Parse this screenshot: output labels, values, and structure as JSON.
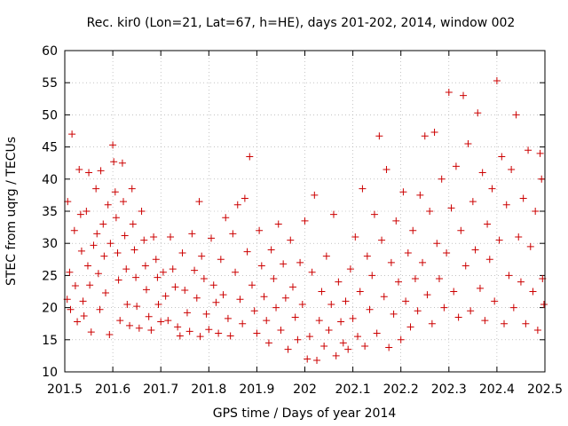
{
  "chart_data": {
    "type": "scatter",
    "title": "Rec. kir0 (Lon=21, Lat=67, h=HE), days 201-202, 2014, window 002",
    "xlabel": "GPS time / Days of year 2014",
    "ylabel": "STEC from uqrg / TECUs",
    "xlim": [
      201.5,
      202.5
    ],
    "ylim": [
      10,
      60
    ],
    "xticks": [
      "201.5",
      "201.6",
      "201.7",
      "201.8",
      "201.9",
      "202",
      "202.1",
      "202.2",
      "202.3",
      "202.4",
      "202.5"
    ],
    "yticks": [
      "10",
      "15",
      "20",
      "25",
      "30",
      "35",
      "40",
      "45",
      "50",
      "55",
      "60"
    ],
    "grid": true,
    "marker": "+",
    "marker_color": "#cc0000",
    "series": [
      {
        "points": [
          [
            201.505,
            21.3
          ],
          [
            201.506,
            36.5
          ],
          [
            201.51,
            25.5
          ],
          [
            201.512,
            19.7
          ],
          [
            201.515,
            47.0
          ],
          [
            201.52,
            32.0
          ],
          [
            201.522,
            23.4
          ],
          [
            201.526,
            17.8
          ],
          [
            201.53,
            41.5
          ],
          [
            201.533,
            34.5
          ],
          [
            201.535,
            28.8
          ],
          [
            201.538,
            21.0
          ],
          [
            201.54,
            18.7
          ],
          [
            201.545,
            35.0
          ],
          [
            201.548,
            26.5
          ],
          [
            201.55,
            41.0
          ],
          [
            201.552,
            23.5
          ],
          [
            201.555,
            16.2
          ],
          [
            201.56,
            29.7
          ],
          [
            201.565,
            38.5
          ],
          [
            201.567,
            31.5
          ],
          [
            201.57,
            25.3
          ],
          [
            201.573,
            19.7
          ],
          [
            201.575,
            41.3
          ],
          [
            201.58,
            33.0
          ],
          [
            201.582,
            28.0
          ],
          [
            201.585,
            22.3
          ],
          [
            201.59,
            36.0
          ],
          [
            201.593,
            15.8
          ],
          [
            201.595,
            30.0
          ],
          [
            201.6,
            45.3
          ],
          [
            201.602,
            42.7
          ],
          [
            201.605,
            38.0
          ],
          [
            201.607,
            34.0
          ],
          [
            201.61,
            28.5
          ],
          [
            201.612,
            24.3
          ],
          [
            201.615,
            18.0
          ],
          [
            201.62,
            42.5
          ],
          [
            201.622,
            36.5
          ],
          [
            201.625,
            31.2
          ],
          [
            201.628,
            26.0
          ],
          [
            201.63,
            20.5
          ],
          [
            201.635,
            17.2
          ],
          [
            201.64,
            38.5
          ],
          [
            201.642,
            33.0
          ],
          [
            201.645,
            29.0
          ],
          [
            201.648,
            24.7
          ],
          [
            201.65,
            20.2
          ],
          [
            201.655,
            16.8
          ],
          [
            201.66,
            35.0
          ],
          [
            201.665,
            30.5
          ],
          [
            201.668,
            26.5
          ],
          [
            201.67,
            22.8
          ],
          [
            201.675,
            18.6
          ],
          [
            201.68,
            16.5
          ],
          [
            201.685,
            31.0
          ],
          [
            201.69,
            27.5
          ],
          [
            201.693,
            24.7
          ],
          [
            201.695,
            20.5
          ],
          [
            201.7,
            17.8
          ],
          [
            201.705,
            25.5
          ],
          [
            201.71,
            21.8
          ],
          [
            201.715,
            18.0
          ],
          [
            201.72,
            31.0
          ],
          [
            201.725,
            26.0
          ],
          [
            201.73,
            23.2
          ],
          [
            201.735,
            17.0
          ],
          [
            201.74,
            15.6
          ],
          [
            201.745,
            28.5
          ],
          [
            201.75,
            22.7
          ],
          [
            201.755,
            19.2
          ],
          [
            201.76,
            16.3
          ],
          [
            201.765,
            31.5
          ],
          [
            201.77,
            25.8
          ],
          [
            201.775,
            21.5
          ],
          [
            201.78,
            36.5
          ],
          [
            201.782,
            15.5
          ],
          [
            201.785,
            28.0
          ],
          [
            201.79,
            24.5
          ],
          [
            201.795,
            19.0
          ],
          [
            201.8,
            16.6
          ],
          [
            201.805,
            30.8
          ],
          [
            201.81,
            23.5
          ],
          [
            201.815,
            20.8
          ],
          [
            201.82,
            16.0
          ],
          [
            201.825,
            27.5
          ],
          [
            201.83,
            22.0
          ],
          [
            201.835,
            34.0
          ],
          [
            201.84,
            18.3
          ],
          [
            201.845,
            15.6
          ],
          [
            201.85,
            31.5
          ],
          [
            201.855,
            25.5
          ],
          [
            201.86,
            36.0
          ],
          [
            201.865,
            21.3
          ],
          [
            201.87,
            17.5
          ],
          [
            201.875,
            37.0
          ],
          [
            201.88,
            28.7
          ],
          [
            201.885,
            43.5
          ],
          [
            201.89,
            23.5
          ],
          [
            201.895,
            19.5
          ],
          [
            201.9,
            16.0
          ],
          [
            201.905,
            32.0
          ],
          [
            201.91,
            26.5
          ],
          [
            201.915,
            21.7
          ],
          [
            201.92,
            18.0
          ],
          [
            201.925,
            14.5
          ],
          [
            201.93,
            29.0
          ],
          [
            201.935,
            24.5
          ],
          [
            201.94,
            20.0
          ],
          [
            201.945,
            33.0
          ],
          [
            201.95,
            16.5
          ],
          [
            201.955,
            26.8
          ],
          [
            201.96,
            21.5
          ],
          [
            201.965,
            13.5
          ],
          [
            201.97,
            30.5
          ],
          [
            201.975,
            23.2
          ],
          [
            201.98,
            18.5
          ],
          [
            201.985,
            15.0
          ],
          [
            201.99,
            27.0
          ],
          [
            201.995,
            20.5
          ],
          [
            202.0,
            33.5
          ],
          [
            202.005,
            12.0
          ],
          [
            202.01,
            15.5
          ],
          [
            202.015,
            25.5
          ],
          [
            202.02,
            37.5
          ],
          [
            202.025,
            11.8
          ],
          [
            202.03,
            18.0
          ],
          [
            202.035,
            22.5
          ],
          [
            202.04,
            14.0
          ],
          [
            202.045,
            28.0
          ],
          [
            202.05,
            16.5
          ],
          [
            202.055,
            20.5
          ],
          [
            202.06,
            34.5
          ],
          [
            202.065,
            12.5
          ],
          [
            202.07,
            24.0
          ],
          [
            202.075,
            17.8
          ],
          [
            202.08,
            14.5
          ],
          [
            202.085,
            21.0
          ],
          [
            202.09,
            13.5
          ],
          [
            202.095,
            26.0
          ],
          [
            202.1,
            18.3
          ],
          [
            202.105,
            31.0
          ],
          [
            202.11,
            15.5
          ],
          [
            202.115,
            22.5
          ],
          [
            202.12,
            38.5
          ],
          [
            202.125,
            14.0
          ],
          [
            202.13,
            28.0
          ],
          [
            202.135,
            19.7
          ],
          [
            202.14,
            25.0
          ],
          [
            202.145,
            34.5
          ],
          [
            202.15,
            16.0
          ],
          [
            202.155,
            46.7
          ],
          [
            202.16,
            30.5
          ],
          [
            202.165,
            21.7
          ],
          [
            202.17,
            41.5
          ],
          [
            202.175,
            13.8
          ],
          [
            202.18,
            27.0
          ],
          [
            202.185,
            19.0
          ],
          [
            202.19,
            33.5
          ],
          [
            202.195,
            24.0
          ],
          [
            202.2,
            15.0
          ],
          [
            202.205,
            38.0
          ],
          [
            202.21,
            21.0
          ],
          [
            202.215,
            28.5
          ],
          [
            202.22,
            17.0
          ],
          [
            202.225,
            32.0
          ],
          [
            202.23,
            24.5
          ],
          [
            202.235,
            19.5
          ],
          [
            202.24,
            37.5
          ],
          [
            202.245,
            27.0
          ],
          [
            202.25,
            46.7
          ],
          [
            202.255,
            22.0
          ],
          [
            202.26,
            35.0
          ],
          [
            202.265,
            17.5
          ],
          [
            202.27,
            47.3
          ],
          [
            202.275,
            30.0
          ],
          [
            202.28,
            24.5
          ],
          [
            202.285,
            40.0
          ],
          [
            202.29,
            20.0
          ],
          [
            202.295,
            28.5
          ],
          [
            202.3,
            53.5
          ],
          [
            202.305,
            35.5
          ],
          [
            202.31,
            22.5
          ],
          [
            202.315,
            42.0
          ],
          [
            202.32,
            18.5
          ],
          [
            202.325,
            32.0
          ],
          [
            202.33,
            53.0
          ],
          [
            202.335,
            26.5
          ],
          [
            202.34,
            45.5
          ],
          [
            202.345,
            19.5
          ],
          [
            202.35,
            36.5
          ],
          [
            202.355,
            29.0
          ],
          [
            202.36,
            50.3
          ],
          [
            202.365,
            23.0
          ],
          [
            202.37,
            41.0
          ],
          [
            202.375,
            18.0
          ],
          [
            202.38,
            33.0
          ],
          [
            202.385,
            27.5
          ],
          [
            202.39,
            38.5
          ],
          [
            202.395,
            21.0
          ],
          [
            202.4,
            55.3
          ],
          [
            202.405,
            30.5
          ],
          [
            202.41,
            43.5
          ],
          [
            202.415,
            17.5
          ],
          [
            202.42,
            36.0
          ],
          [
            202.425,
            25.0
          ],
          [
            202.43,
            41.5
          ],
          [
            202.435,
            20.0
          ],
          [
            202.44,
            50.0
          ],
          [
            202.445,
            31.0
          ],
          [
            202.45,
            24.0
          ],
          [
            202.455,
            37.0
          ],
          [
            202.46,
            17.5
          ],
          [
            202.465,
            44.5
          ],
          [
            202.47,
            29.5
          ],
          [
            202.475,
            22.5
          ],
          [
            202.48,
            35.0
          ],
          [
            202.485,
            16.5
          ],
          [
            202.49,
            44.0
          ],
          [
            202.493,
            40.0
          ],
          [
            202.495,
            24.5
          ],
          [
            202.498,
            20.5
          ]
        ]
      }
    ]
  }
}
